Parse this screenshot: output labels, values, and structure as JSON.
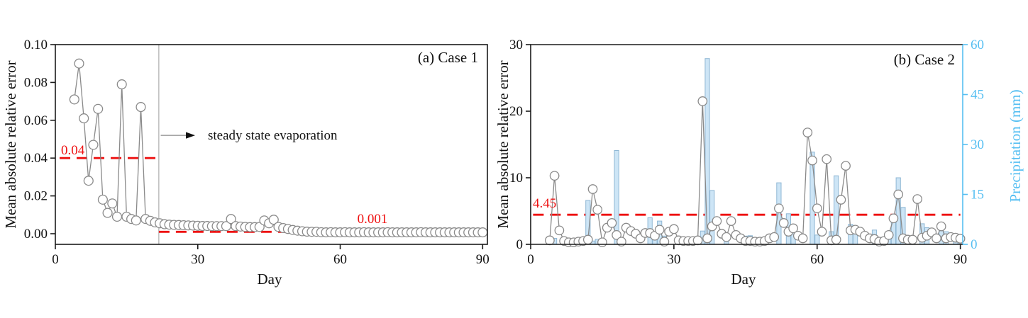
{
  "figure": {
    "background": "#ffffff",
    "colors": {
      "series_line": "#8a8a8a",
      "marker_fill": "#ffffff",
      "marker_edge": "#8a8a8a",
      "reference_red": "#ee1111",
      "bar_fill": "#cde5f6",
      "bar_edge": "#8fb7d4",
      "right_axis_blue": "#56bff2",
      "axis_black": "#1a1a1a",
      "boundary_line_gray": "#9a9a9a"
    }
  },
  "chart_data": [
    {
      "type": "line",
      "title": "(a) Case 1",
      "xlabel": "Day",
      "ylabel": "Mean absolute relative error",
      "xlim": [
        0,
        91
      ],
      "ylim": [
        -0.0056,
        0.1
      ],
      "x_ticks": [
        0,
        30,
        60,
        90
      ],
      "y_ticks": [
        0.0,
        0.02,
        0.04,
        0.06,
        0.08,
        0.1
      ],
      "y_tick_labels": [
        "0.00",
        "0.02",
        "0.04",
        "0.06",
        "0.08",
        "0.10"
      ],
      "grid": false,
      "series": [
        {
          "name": "mean-absolute-relative-error",
          "marker": "open-circle",
          "x_start_day": 4,
          "x_step": 1,
          "y": [
            0.071,
            0.09,
            0.061,
            0.028,
            0.047,
            0.066,
            0.018,
            0.011,
            0.016,
            0.009,
            0.079,
            0.009,
            0.0078,
            0.007,
            0.067,
            0.0078,
            0.0068,
            0.006,
            0.0055,
            0.005,
            0.0048,
            0.0047,
            0.0046,
            0.0045,
            0.0044,
            0.0043,
            0.0042,
            0.0041,
            0.0041,
            0.004,
            0.004,
            0.004,
            0.004,
            0.0078,
            0.004,
            0.0038,
            0.0036,
            0.0035,
            0.0035,
            0.0036,
            0.007,
            0.0055,
            0.0074,
            0.0036,
            0.003,
            0.0025,
            0.002,
            0.0016,
            0.0013,
            0.0011,
            0.001,
            0.001,
            0.0008,
            0.0007,
            0.0008,
            0.0007,
            0.0007,
            0.0008,
            0.0007,
            0.0007,
            0.0007,
            0.0008,
            0.0007,
            0.0007,
            0.0007,
            0.0007,
            0.0008,
            0.0007,
            0.0007,
            0.0007,
            0.0007,
            0.0007,
            0.0007,
            0.0008,
            0.0007,
            0.0007,
            0.0007,
            0.0007,
            0.0007,
            0.0007,
            0.0007,
            0.0007,
            0.0007,
            0.0007,
            0.0007,
            0.0007,
            0.0007
          ]
        }
      ],
      "reference_lines": [
        {
          "label": "0.04",
          "value": 0.04,
          "day_start": 0.9,
          "day_end": 21.8,
          "style": "dashed",
          "color": "#ee1111"
        },
        {
          "label": "0.001",
          "value": 0.001,
          "day_start": 21.8,
          "day_end": 90.7,
          "style": "dashed",
          "color": "#ee1111"
        }
      ],
      "boundary_vertical_line_day": 21.8,
      "annotation": {
        "text": "steady state evaporation",
        "arrow_from_day": 22.2,
        "arrow_to_day": 27.5,
        "at_value": 0.052
      }
    },
    {
      "type": "line+bar",
      "title": "(b) Case 2",
      "xlabel": "Day",
      "ylabel_left": "Mean absolute relative error",
      "ylabel_right": "Precipitation (mm)",
      "xlim": [
        0,
        90.5
      ],
      "ylim_left": [
        0,
        30
      ],
      "ylim_right": [
        0,
        60
      ],
      "x_ticks": [
        0,
        30,
        60,
        90
      ],
      "y_ticks_left": [
        0,
        10,
        20,
        30
      ],
      "y_ticks_right": [
        0,
        15,
        30,
        45,
        60
      ],
      "grid": false,
      "series": [
        {
          "name": "mean-absolute-relative-error",
          "marker": "open-circle",
          "x_start_day": 4,
          "x_step": 1,
          "y": [
            0.6,
            10.3,
            2.1,
            0.5,
            0.3,
            0.3,
            0.4,
            0.5,
            0.7,
            8.3,
            5.2,
            0.3,
            2.5,
            3.2,
            1.4,
            0.4,
            2.5,
            2.0,
            1.6,
            0.9,
            1.7,
            1.7,
            1.3,
            2.2,
            0.4,
            1.9,
            2.3,
            0.6,
            0.5,
            0.5,
            0.5,
            0.6,
            21.5,
            0.9,
            2.7,
            3.5,
            1.6,
            1.1,
            3.5,
            1.4,
            0.9,
            0.5,
            0.5,
            0.4,
            0.4,
            0.5,
            0.9,
            1.1,
            5.4,
            3.2,
            1.9,
            2.4,
            1.3,
            0.9,
            16.8,
            12.6,
            5.4,
            1.9,
            12.8,
            0.6,
            0.7,
            6.7,
            11.8,
            2.1,
            2.2,
            1.9,
            1.3,
            0.9,
            0.8,
            0.4,
            0.5,
            1.4,
            3.9,
            7.5,
            0.9,
            0.7,
            0.7,
            6.8,
            1.0,
            1.3,
            1.8,
            0.9,
            2.7,
            0.9,
            1.1,
            1.0,
            0.85
          ]
        }
      ],
      "bars": {
        "name": "precipitation-mm",
        "unit": "mm",
        "points": [
          [
            5,
            1.8
          ],
          [
            12,
            13.2
          ],
          [
            13,
            1.0
          ],
          [
            14,
            1.5
          ],
          [
            18,
            28.2
          ],
          [
            19,
            1.6
          ],
          [
            25,
            8.0
          ],
          [
            26,
            2.3
          ],
          [
            27,
            7.0
          ],
          [
            28,
            2.5
          ],
          [
            36,
            4.0
          ],
          [
            37,
            55.8
          ],
          [
            38,
            16.2
          ],
          [
            41,
            2.1
          ],
          [
            45,
            2.5
          ],
          [
            46,
            2.6
          ],
          [
            52,
            18.5
          ],
          [
            54,
            9.2
          ],
          [
            55,
            4.0
          ],
          [
            59,
            27.7
          ],
          [
            60,
            2.8
          ],
          [
            63,
            3.8
          ],
          [
            64,
            20.6
          ],
          [
            67,
            6.0
          ],
          [
            68,
            3.4
          ],
          [
            72,
            4.3
          ],
          [
            73,
            1.6
          ],
          [
            74,
            2.1
          ],
          [
            75,
            3.5
          ],
          [
            76,
            8.8
          ],
          [
            77,
            20.0
          ],
          [
            78,
            11.1
          ],
          [
            79,
            1.8
          ],
          [
            80,
            1.8
          ],
          [
            82,
            6.2
          ],
          [
            83,
            5.0
          ],
          [
            86,
            6.0
          ],
          [
            87,
            3.8
          ],
          [
            89,
            3.2
          ],
          [
            90,
            1.5
          ]
        ]
      },
      "reference_lines": [
        {
          "label": "4.45",
          "value": 4.45,
          "day_start": 0.5,
          "day_end": 90,
          "style": "dashed",
          "color": "#ee1111"
        }
      ]
    }
  ]
}
